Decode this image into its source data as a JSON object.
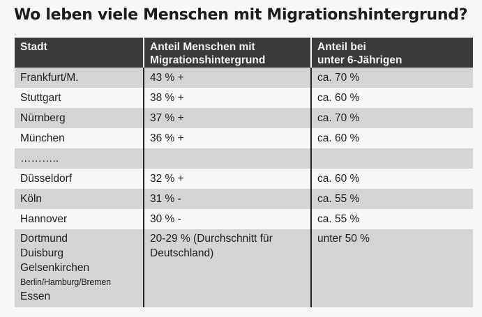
{
  "title": "Wo leben viele Menschen mit Migrationshintergrund?",
  "table": {
    "headers": {
      "col1": "Stadt",
      "col2_line1": "Anteil Menschen mit",
      "col2_line2": "Migrationshintergrund",
      "col3_line1": "Anteil bei",
      "col3_line2": "unter 6-Jährigen"
    },
    "rows": [
      {
        "city": "Frankfurt/M.",
        "share": "43 % +",
        "under6": "ca. 70 %"
      },
      {
        "city": "Stuttgart",
        "share": "38 % +",
        "under6": "ca. 60 %"
      },
      {
        "city": "Nürnberg",
        "share": "37 % +",
        "under6": "ca. 70 %"
      },
      {
        "city": "München",
        "share": "36 % +",
        "under6": "ca. 60 %"
      },
      {
        "city": "………..",
        "share": "",
        "under6": ""
      },
      {
        "city": "Düsseldorf",
        "share": "32 % +",
        "under6": "ca. 60 %"
      },
      {
        "city": "Köln",
        "share": "31 % -",
        "under6": "ca. 55 %"
      },
      {
        "city": "Hannover",
        "share": "30 % -",
        "under6": "ca. 55 %"
      }
    ],
    "last_row": {
      "cities": [
        "Dortmund",
        "Duisburg",
        "Gelsenkirchen",
        "Berlin/Hamburg/Bremen",
        "Essen"
      ],
      "share_line1": "20-29 % (Durchschnitt für",
      "share_line2": "Deutschland)",
      "under6": "unter 50 %"
    }
  }
}
